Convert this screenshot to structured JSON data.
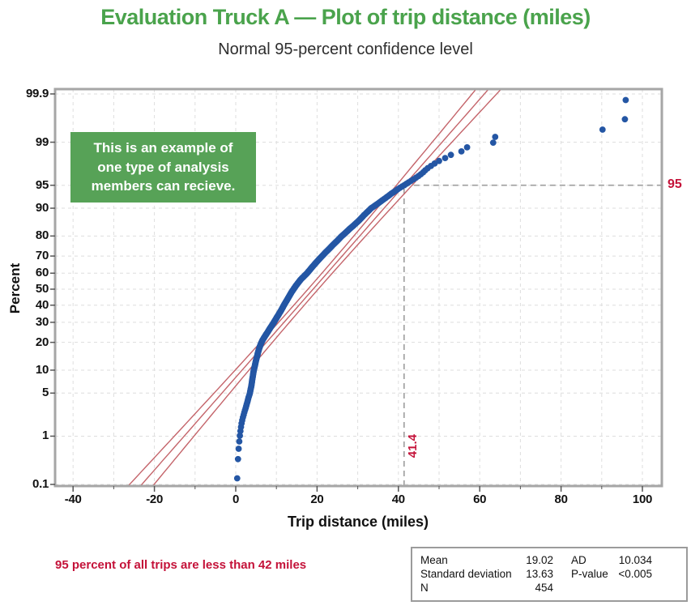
{
  "header": {
    "title": "Evaluation Truck A — Plot of trip distance (miles)",
    "subtitle": "Normal 95-percent confidence level"
  },
  "annotation_box": {
    "lines": [
      "This is an example of",
      "one type of analysis",
      "members can recieve."
    ],
    "bg_color": "#57a257",
    "text_color": "#ffffff"
  },
  "caption": "95 percent of all trips are less than 42 miles",
  "stats_table": {
    "left_rows": [
      {
        "label": "Mean",
        "value": "19.02"
      },
      {
        "label": "Standard deviation",
        "value": "13.63"
      },
      {
        "label": "N",
        "value": "454"
      }
    ],
    "right_rows": [
      {
        "label": "AD",
        "value": "10.034"
      },
      {
        "label": "P-value",
        "value": "<0.005"
      }
    ]
  },
  "chart_data": {
    "type": "scatter",
    "subtype": "normal-probability-plot",
    "title": "Evaluation Truck A — Plot of trip distance (miles)",
    "subtitle": "Normal 95-percent confidence level",
    "xlabel": "Trip distance (miles)",
    "ylabel": "Percent",
    "xlim": [
      -44.4,
      104.8
    ],
    "x_major_ticks": [
      -40,
      -20,
      0,
      20,
      40,
      60,
      80,
      100
    ],
    "x_minor_step": 10,
    "y_ticks_percent": [
      0.1,
      1,
      5,
      10,
      20,
      30,
      40,
      50,
      60,
      70,
      80,
      90,
      95,
      99,
      99.9
    ],
    "y_scale": "normal-probability",
    "grid": true,
    "stats": {
      "mean": 19.02,
      "std_dev": 13.63,
      "n": 454,
      "ad": 10.034,
      "p_value": "<0.005"
    },
    "fit_line": {
      "mean": 19.02,
      "sd": 13.63,
      "confidence": 0.95
    },
    "reference_lines": {
      "percent": 95,
      "x_value": 41.4,
      "percent_label": "95",
      "x_label": "41.4"
    },
    "quantile_curve_percent_x": [
      [
        0.13,
        0.35
      ],
      [
        0.36,
        0.55
      ],
      [
        0.58,
        0.72
      ],
      [
        0.8,
        0.88
      ],
      [
        1.02,
        1.02
      ],
      [
        1.24,
        1.16
      ],
      [
        1.46,
        1.3
      ],
      [
        1.68,
        1.44
      ],
      [
        1.9,
        1.6
      ],
      [
        2.34,
        1.95
      ],
      [
        3.0,
        2.45
      ],
      [
        3.66,
        2.85
      ],
      [
        4.32,
        3.15
      ],
      [
        5.0,
        3.5
      ],
      [
        6.1,
        3.8
      ],
      [
        7.2,
        4.0
      ],
      [
        8.4,
        4.2
      ],
      [
        9.7,
        4.4
      ],
      [
        11,
        4.65
      ],
      [
        13,
        5.0
      ],
      [
        15,
        5.35
      ],
      [
        17,
        5.7
      ],
      [
        19,
        6.1
      ],
      [
        21,
        6.6
      ],
      [
        23,
        7.25
      ],
      [
        25,
        7.9
      ],
      [
        27,
        8.5
      ],
      [
        29,
        9.1
      ],
      [
        31,
        9.65
      ],
      [
        34,
        10.45
      ],
      [
        37,
        11.2
      ],
      [
        40,
        11.85
      ],
      [
        44,
        12.8
      ],
      [
        48,
        13.7
      ],
      [
        52,
        14.75
      ],
      [
        56,
        15.95
      ],
      [
        60,
        17.55
      ],
      [
        64,
        18.9
      ],
      [
        68,
        20.4
      ],
      [
        72,
        22.1
      ],
      [
        76,
        24.0
      ],
      [
        80,
        26.1
      ],
      [
        83,
        28.0
      ],
      [
        86,
        30.2
      ],
      [
        88,
        31.6
      ],
      [
        90,
        33.3
      ],
      [
        92,
        36.0
      ],
      [
        93.5,
        38.3
      ],
      [
        94.5,
        40.2
      ],
      [
        95.5,
        42.6
      ],
      [
        96.2,
        44.6
      ],
      [
        96.9,
        46.4
      ]
    ],
    "upper_tail_x": [
      46.6,
      47.2,
      48.0,
      48.9,
      50.0,
      51.5,
      52.9,
      55.5,
      56.9,
      63.3,
      63.8,
      90.2,
      95.7,
      95.9
    ],
    "colors": {
      "point": "#2456a4",
      "fit_line": "#c4646a",
      "reference_text": "#c41239",
      "title_green": "#4aa34c",
      "grid": "#dedede",
      "crosshair": "#9e9e9e",
      "frame": "#a6a6a6",
      "tick": "#555555"
    }
  }
}
